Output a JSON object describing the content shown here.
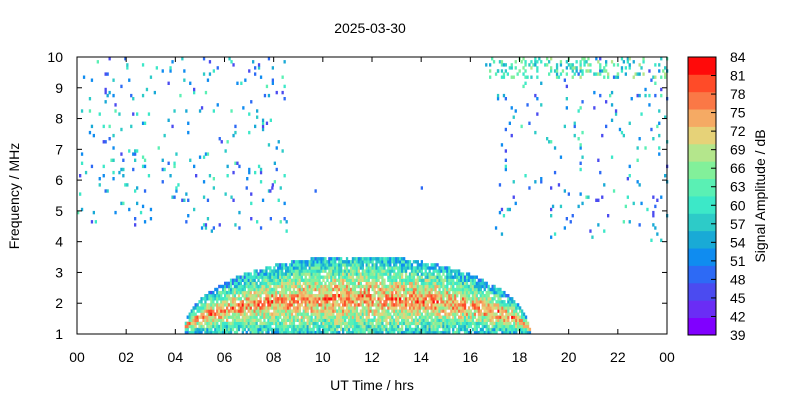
{
  "chart_data": {
    "type": "heatmap",
    "title": "2025-03-30",
    "xlabel": "UT Time / hrs",
    "ylabel": "Frequency / MHz",
    "colorbar_label": "Signal Amplitude / dB",
    "x_ticks": [
      "00",
      "02",
      "04",
      "06",
      "08",
      "10",
      "12",
      "14",
      "16",
      "18",
      "20",
      "22",
      "00"
    ],
    "xlim": [
      0,
      24
    ],
    "y_ticks": [
      "1",
      "2",
      "3",
      "4",
      "5",
      "6",
      "7",
      "8",
      "9",
      "10"
    ],
    "ylim": [
      1,
      10
    ],
    "colorbar_ticks": [
      "39",
      "42",
      "45",
      "48",
      "51",
      "54",
      "57",
      "60",
      "63",
      "66",
      "69",
      "72",
      "75",
      "78",
      "81",
      "84"
    ],
    "color_range": [
      39,
      84
    ],
    "colors": [
      "#8000ff",
      "#6a2df5",
      "#4b4bf0",
      "#2d6af5",
      "#0f8cf0",
      "#19aad6",
      "#2dcbc8",
      "#3ce8c8",
      "#5af0b4",
      "#82f09a",
      "#b4e68c",
      "#e6d278",
      "#f5aa64",
      "#fa7846",
      "#ff4b28",
      "#ff0a0a"
    ],
    "grid": false,
    "regions": [
      {
        "name": "daytime-arc",
        "start": 4.3,
        "end": 18.4,
        "peak_freq": 3.5,
        "base_freq": 1.0,
        "peak_db": 76
      },
      {
        "name": "morning-noise",
        "x_range": [
          0,
          8.5
        ],
        "y_range": [
          4.3,
          9.9
        ],
        "density": "sparse",
        "db_range": [
          45,
          63
        ]
      },
      {
        "name": "evening-noise",
        "x_range": [
          17,
          24
        ],
        "y_range": [
          4.0,
          9.9
        ],
        "density": "sparse",
        "db_range": [
          45,
          63
        ]
      },
      {
        "name": "top-band-evening",
        "x_range": [
          16.6,
          24
        ],
        "y_range": [
          9.3,
          9.9
        ],
        "density": "medium",
        "db_range": [
          54,
          69
        ]
      },
      {
        "name": "interference-line",
        "x_range": [
          6.3,
          14.8
        ],
        "y_range": [
          5.6,
          5.7
        ],
        "density": "sparse",
        "db_range": [
          45,
          51
        ]
      }
    ]
  }
}
